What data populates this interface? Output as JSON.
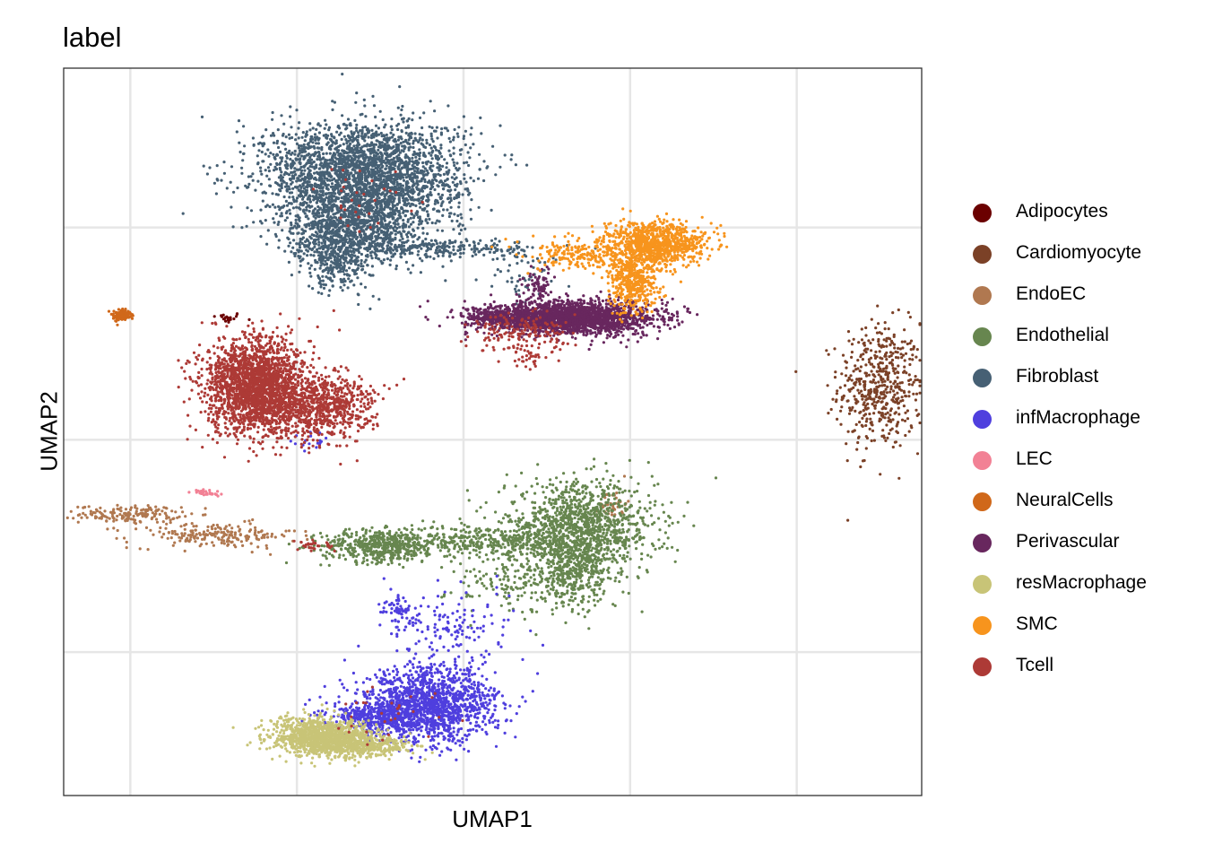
{
  "chart_data": {
    "type": "scatter",
    "title": "label",
    "xlabel": "UMAP1",
    "ylabel": "UMAP2",
    "grid": true,
    "axis_ticks_labels_shown": false,
    "legend_position": "right",
    "series": [
      {
        "name": "Adipocytes",
        "color": "#6B0000",
        "clusters": [
          {
            "x": 1.15,
            "y": 6.3,
            "sx": 0.1,
            "sy": 0.05,
            "n": 20
          }
        ]
      },
      {
        "name": "Cardiomyocyte",
        "color": "#7B4127",
        "clusters": [
          {
            "x": 9.0,
            "y": 5.0,
            "sx": 0.25,
            "sy": 0.6,
            "n": 500
          }
        ]
      },
      {
        "name": "EndoEC",
        "color": "#B07850",
        "clusters": [
          {
            "x": 0.0,
            "y": 2.6,
            "sx": 0.3,
            "sy": 0.08,
            "n": 160
          },
          {
            "x": 1.0,
            "y": 2.2,
            "sx": 0.5,
            "sy": 0.12,
            "n": 200
          },
          {
            "x": 5.8,
            "y": 2.8,
            "sx": 0.08,
            "sy": 0.15,
            "n": 40
          }
        ]
      },
      {
        "name": "Endothelial",
        "color": "#67864F",
        "clusters": [
          {
            "x": 3.0,
            "y": 2.0,
            "sx": 0.35,
            "sy": 0.15,
            "n": 500
          },
          {
            "x": 4.2,
            "y": 2.1,
            "sx": 0.6,
            "sy": 0.15,
            "n": 400
          },
          {
            "x": 5.4,
            "y": 2.3,
            "sx": 0.45,
            "sy": 0.45,
            "n": 1300
          },
          {
            "x": 5.3,
            "y": 1.5,
            "sx": 0.2,
            "sy": 0.3,
            "n": 300
          },
          {
            "x": 4.6,
            "y": 1.3,
            "sx": 0.4,
            "sy": 0.3,
            "n": 150
          }
        ]
      },
      {
        "name": "Fibroblast",
        "color": "#466074",
        "clusters": [
          {
            "x": 2.8,
            "y": 9.0,
            "sx": 0.6,
            "sy": 0.5,
            "n": 2600
          },
          {
            "x": 2.7,
            "y": 8.0,
            "sx": 0.4,
            "sy": 0.35,
            "n": 1000
          },
          {
            "x": 2.5,
            "y": 7.4,
            "sx": 0.2,
            "sy": 0.3,
            "n": 300
          },
          {
            "x": 3.9,
            "y": 7.6,
            "sx": 0.55,
            "sy": 0.08,
            "n": 200
          },
          {
            "x": 4.7,
            "y": 7.0,
            "sx": 0.2,
            "sy": 0.3,
            "n": 50
          }
        ]
      },
      {
        "name": "infMacrophage",
        "color": "#4F3FDE",
        "clusters": [
          {
            "x": 3.6,
            "y": -1.0,
            "sx": 0.4,
            "sy": 0.35,
            "n": 1400
          },
          {
            "x": 3.0,
            "y": -1.2,
            "sx": 0.3,
            "sy": 0.15,
            "n": 400
          },
          {
            "x": 3.9,
            "y": 0.4,
            "sx": 0.35,
            "sy": 0.4,
            "n": 150
          },
          {
            "x": 3.2,
            "y": 0.8,
            "sx": 0.1,
            "sy": 0.2,
            "n": 60
          },
          {
            "x": 2.2,
            "y": 4.0,
            "sx": 0.12,
            "sy": 0.1,
            "n": 20
          }
        ]
      },
      {
        "name": "LEC",
        "color": "#F28195",
        "clusters": [
          {
            "x": 0.9,
            "y": 3.0,
            "sx": 0.08,
            "sy": 0.03,
            "n": 30
          }
        ]
      },
      {
        "name": "NeuralCells",
        "color": "#D0681A",
        "clusters": [
          {
            "x": -0.1,
            "y": 6.35,
            "sx": 0.05,
            "sy": 0.05,
            "n": 120
          }
        ]
      },
      {
        "name": "Perivascular",
        "color": "#68275E",
        "clusters": [
          {
            "x": 5.3,
            "y": 6.3,
            "sx": 0.5,
            "sy": 0.15,
            "n": 2200
          },
          {
            "x": 4.5,
            "y": 6.3,
            "sx": 0.25,
            "sy": 0.1,
            "n": 300
          },
          {
            "x": 4.9,
            "y": 6.85,
            "sx": 0.1,
            "sy": 0.2,
            "n": 80
          }
        ]
      },
      {
        "name": "resMacrophage",
        "color": "#C8C477",
        "clusters": [
          {
            "x": 2.3,
            "y": -1.6,
            "sx": 0.3,
            "sy": 0.18,
            "n": 1100
          },
          {
            "x": 2.8,
            "y": -1.75,
            "sx": 0.3,
            "sy": 0.1,
            "n": 400
          }
        ]
      },
      {
        "name": "SMC",
        "color": "#F7941D",
        "clusters": [
          {
            "x": 6.3,
            "y": 7.7,
            "sx": 0.3,
            "sy": 0.2,
            "n": 900
          },
          {
            "x": 6.05,
            "y": 7.0,
            "sx": 0.15,
            "sy": 0.3,
            "n": 450
          },
          {
            "x": 5.4,
            "y": 7.5,
            "sx": 0.35,
            "sy": 0.15,
            "n": 200
          }
        ]
      },
      {
        "name": "Tcell",
        "color": "#AD3A36",
        "clusters": [
          {
            "x": 1.5,
            "y": 5.0,
            "sx": 0.3,
            "sy": 0.45,
            "n": 2200
          },
          {
            "x": 2.3,
            "y": 4.6,
            "sx": 0.3,
            "sy": 0.3,
            "n": 700
          },
          {
            "x": 4.7,
            "y": 6.0,
            "sx": 0.3,
            "sy": 0.2,
            "n": 150
          },
          {
            "x": 4.8,
            "y": 5.6,
            "sx": 0.15,
            "sy": 0.15,
            "n": 40
          },
          {
            "x": 2.2,
            "y": 2.0,
            "sx": 0.1,
            "sy": 0.05,
            "n": 30
          },
          {
            "x": 3.0,
            "y": -1.2,
            "sx": 0.4,
            "sy": 0.3,
            "n": 30
          },
          {
            "x": 2.7,
            "y": 8.5,
            "sx": 0.4,
            "sy": 0.4,
            "n": 30
          }
        ]
      }
    ]
  }
}
